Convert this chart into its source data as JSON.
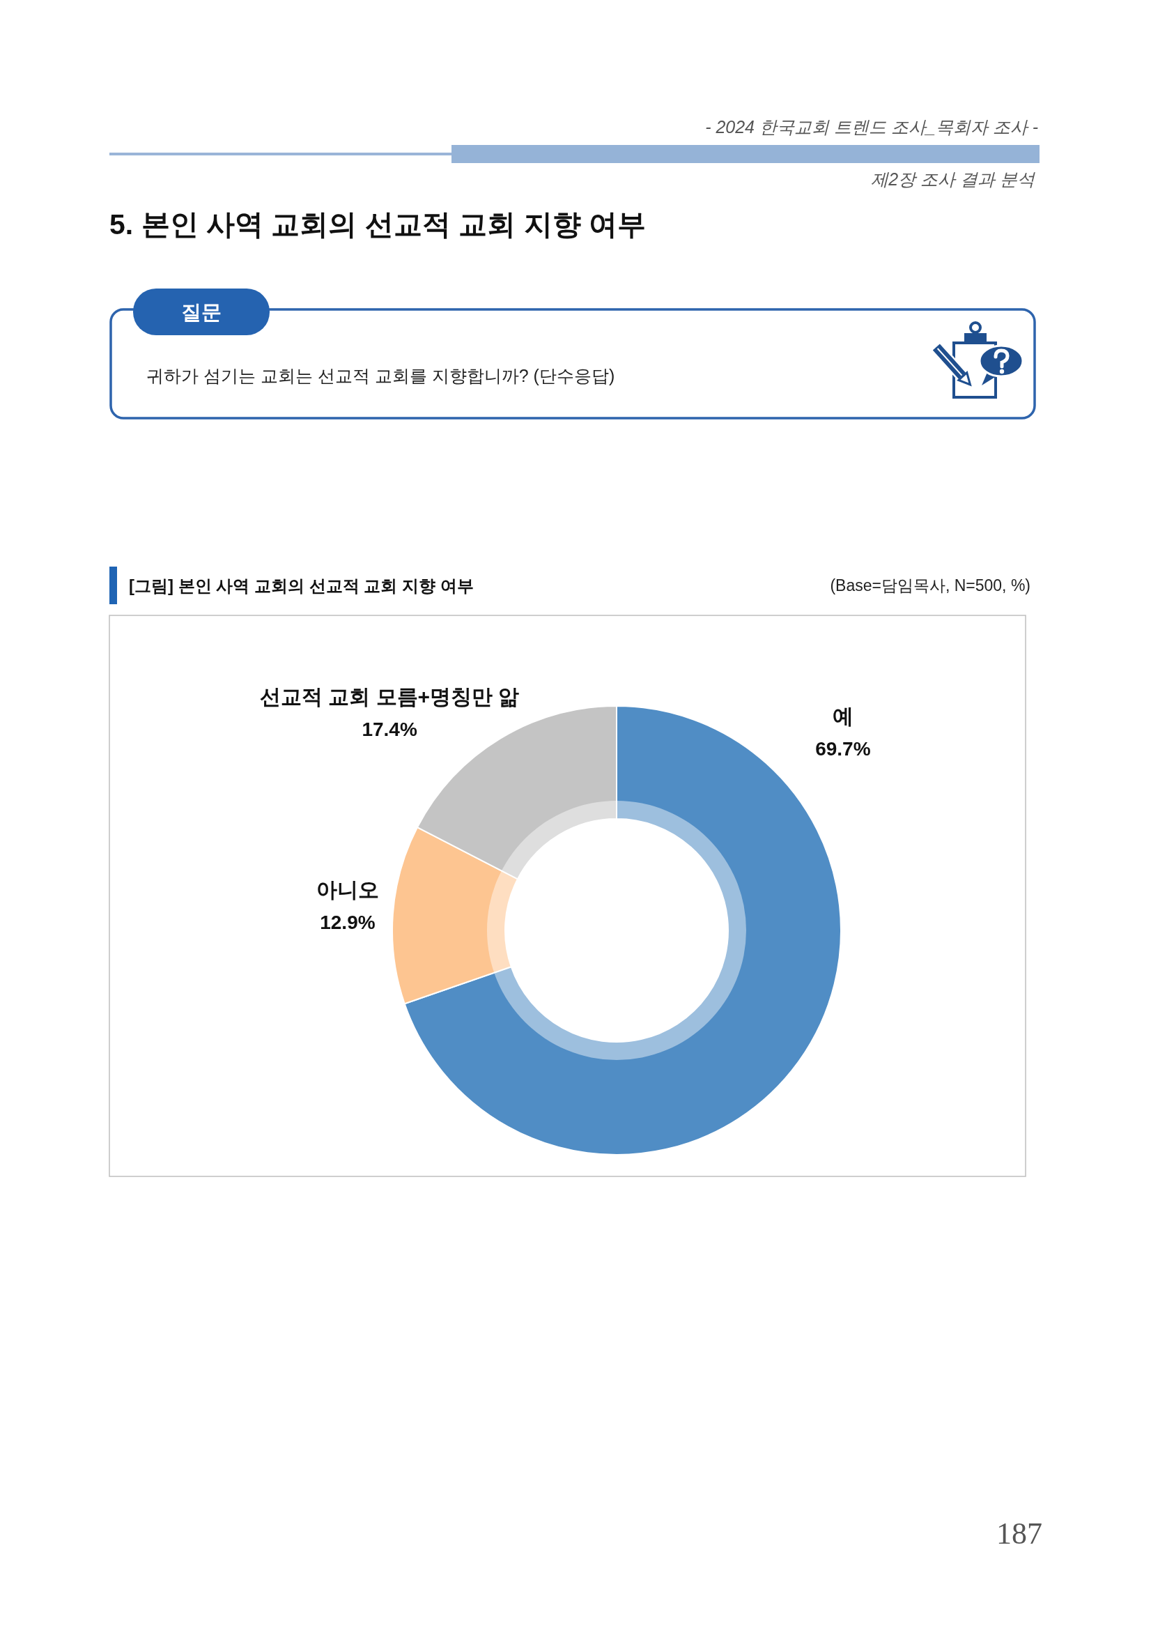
{
  "chart_data": {
    "type": "donut",
    "title": "[그림] 본인 사역 교회의 선교적 교회 지향 여부",
    "subtitle": "(Base=담임목사, N=500, %)",
    "categories": [
      "예",
      "아니오",
      "선교적 교회 모름+명칭만 앎"
    ],
    "values": [
      69.7,
      12.9,
      17.4
    ],
    "colors": [
      "#508dc5",
      "#fdc591",
      "#c4c4c4"
    ],
    "value_labels": [
      "69.7%",
      "12.9%",
      "17.4%"
    ],
    "annotations": [
      "- 2024 한국교회 트렌드 조사_목회자 조사 -",
      "제2장 조사 결과 분석",
      "5. 본인 사역 교회의 선교적 교회 지향 여부",
      "질문",
      "귀하가 섬기는 교회는 선교적 교회를 지향합니까? (단수응답)",
      "187"
    ]
  }
}
